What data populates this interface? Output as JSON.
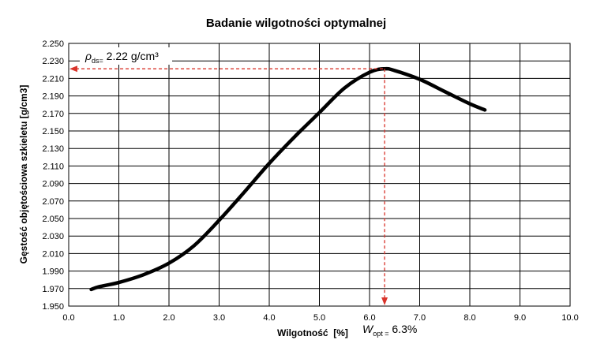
{
  "chart_data": {
    "type": "line",
    "title": "Badanie wilgotności optymalnej",
    "xlabel": "Wilgotność  [%]",
    "ylabel": "Gęstość objętościowa szkieletu [g/cm3]",
    "xlim": [
      0.0,
      10.0
    ],
    "ylim": [
      1.95,
      2.25
    ],
    "xticks": [
      "0.0",
      "1.0",
      "2.0",
      "3.0",
      "4.0",
      "5.0",
      "6.0",
      "7.0",
      "8.0",
      "9.0",
      "10.0"
    ],
    "yticks": [
      "1.950",
      "1.970",
      "1.990",
      "2.010",
      "2.030",
      "2.050",
      "2.070",
      "2.090",
      "2.110",
      "2.130",
      "2.150",
      "2.170",
      "2.190",
      "2.210",
      "2.230",
      "2.250"
    ],
    "grid": true,
    "series": [
      {
        "x": [
          0.45,
          0.6,
          1.0,
          1.5,
          2.0,
          2.5,
          3.0,
          3.5,
          4.0,
          4.5,
          5.0,
          5.5,
          6.0,
          6.3,
          6.5,
          7.0,
          7.5,
          8.0,
          8.3
        ],
        "y": [
          1.969,
          1.972,
          1.977,
          1.986,
          1.999,
          2.019,
          2.048,
          2.08,
          2.113,
          2.143,
          2.171,
          2.199,
          2.217,
          2.221,
          2.219,
          2.209,
          2.195,
          2.181,
          2.174
        ],
        "color": "#000000"
      }
    ],
    "annotations": {
      "optimum": {
        "x": 6.3,
        "y": 2.221,
        "color": "#d9342b",
        "y_label": {
          "symbol": "ρ",
          "sub": "ds=",
          "text": " 2.22 g/cm³"
        },
        "x_label": {
          "symbol": "W",
          "sub": "opt =",
          "text": " 6.3%"
        }
      }
    }
  }
}
